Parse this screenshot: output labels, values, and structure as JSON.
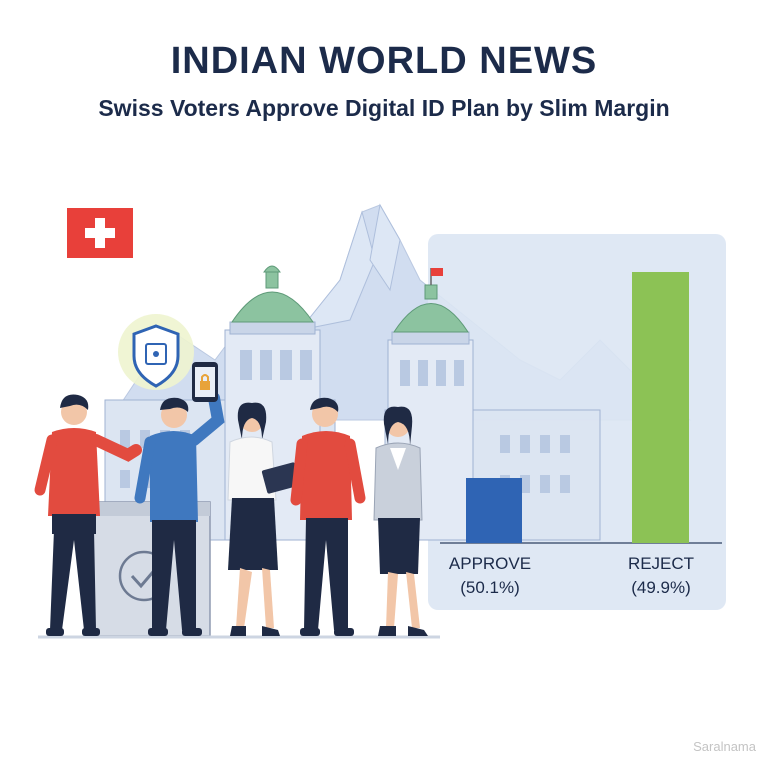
{
  "header": {
    "title": "INDIAN WORLD NEWS",
    "subtitle": "Swiss Voters Approve Digital ID Plan by Slim Margin"
  },
  "chart_data": {
    "type": "bar",
    "categories": [
      "APPROVE",
      "REJECT"
    ],
    "values": [
      50.1,
      49.9
    ],
    "value_labels": [
      "(50.1%)",
      "(49.9%)"
    ],
    "colors": [
      "#2f64b4",
      "#8cc255"
    ],
    "title": "",
    "xlabel": "",
    "ylabel": "",
    "grid": false,
    "legend": "none"
  },
  "illustration": {
    "flag": "swiss-flag",
    "icons": [
      "shield-chip-icon",
      "smartphone-lock-icon",
      "ballot-box-check-icon"
    ],
    "colors": {
      "flag_red": "#e8403a",
      "dome_green": "#8cc3a0",
      "mountain": "#c6d6ec"
    }
  },
  "watermark": "Saralnama"
}
